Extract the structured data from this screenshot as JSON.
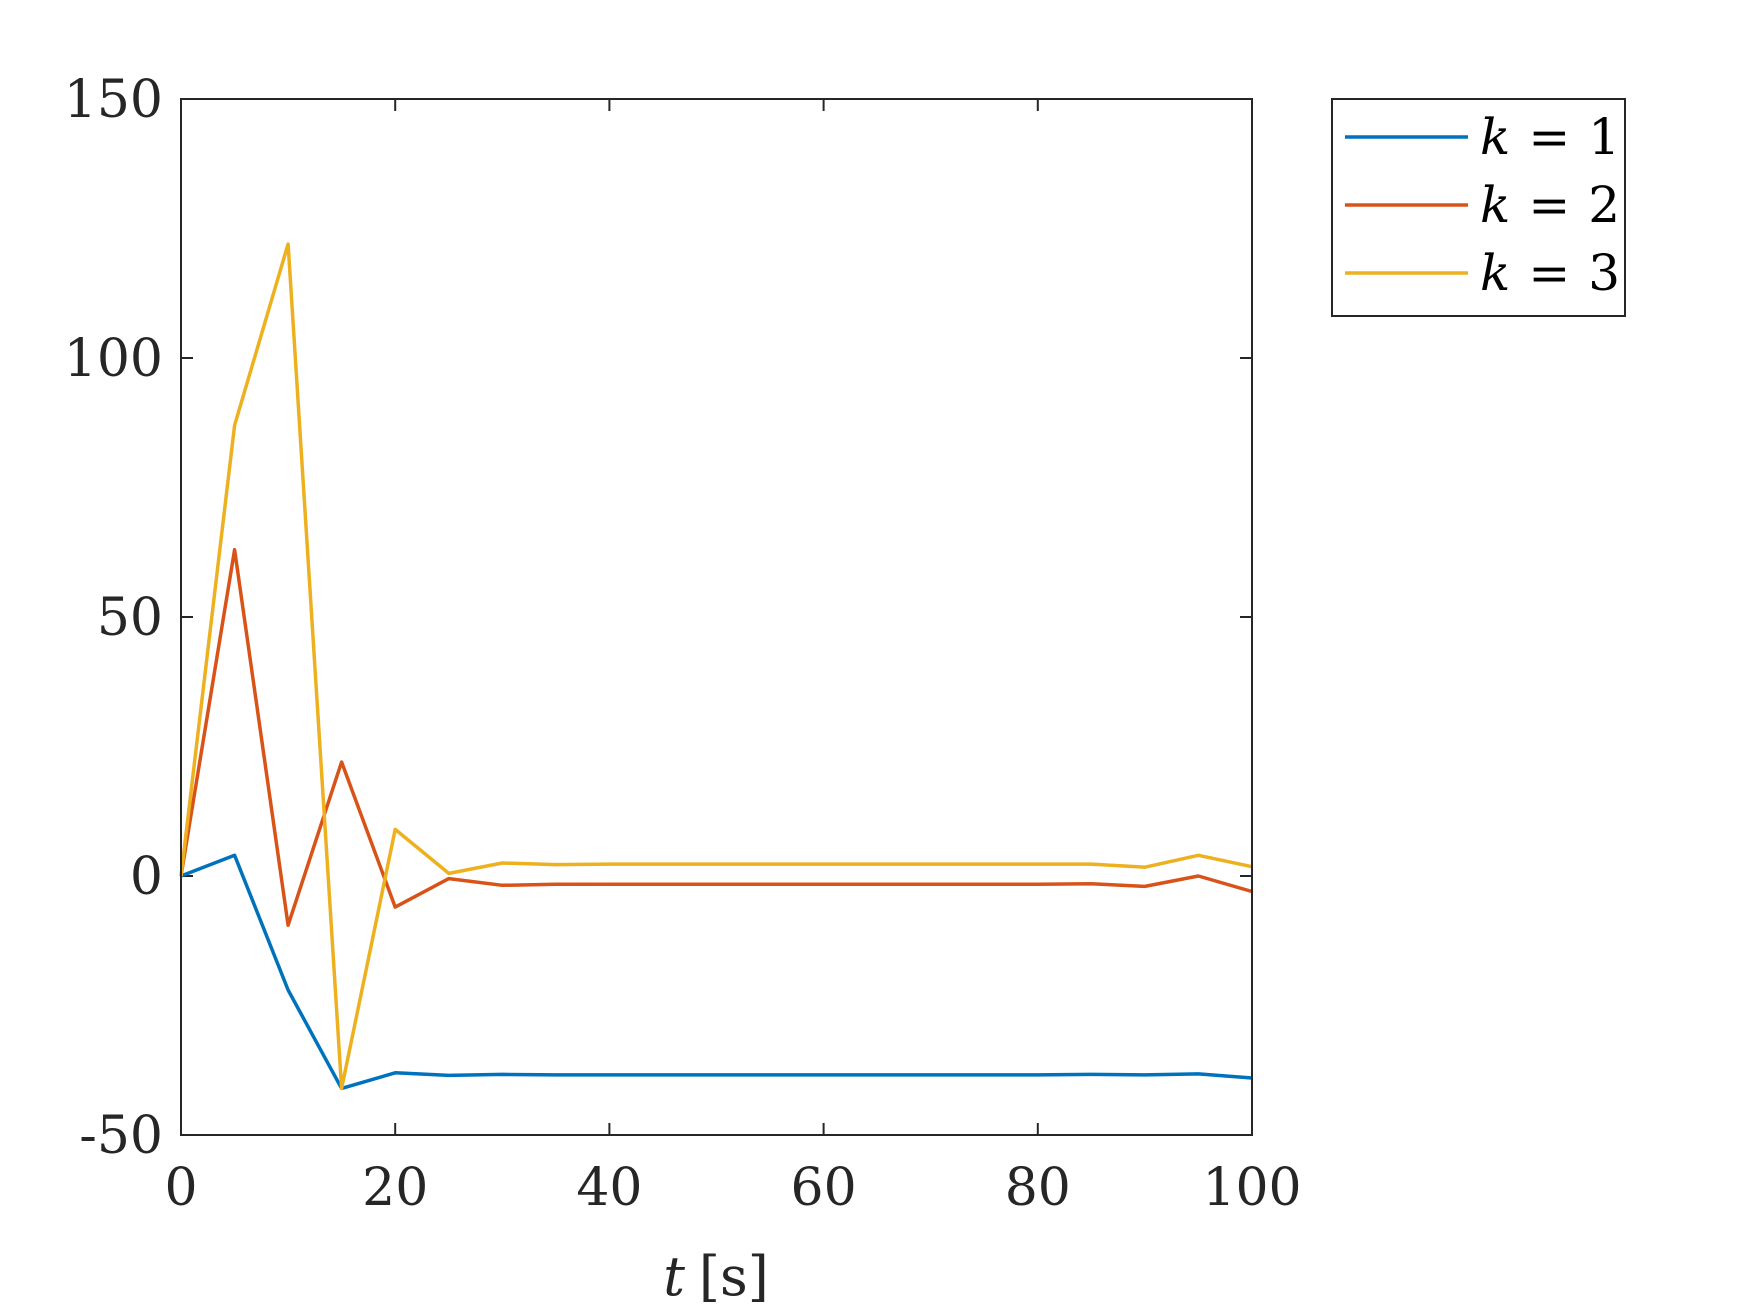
{
  "chart_data": {
    "type": "line",
    "title": "",
    "xlabel_var": "t",
    "xlabel_unit": "[s]",
    "ylabel": "",
    "xlim": [
      0,
      100
    ],
    "ylim": [
      -50,
      150
    ],
    "xticks": [
      0,
      20,
      40,
      60,
      80,
      100
    ],
    "yticks": [
      -50,
      0,
      50,
      100,
      150
    ],
    "xtick_labels": [
      "0",
      "20",
      "40",
      "60",
      "80",
      "100"
    ],
    "ytick_labels": [
      "-50",
      "0",
      "50",
      "100",
      "150"
    ],
    "grid": false,
    "legend_position": "outside-top-right",
    "x": [
      0,
      5,
      10,
      15,
      20,
      25,
      30,
      35,
      40,
      45,
      50,
      55,
      60,
      65,
      70,
      75,
      80,
      85,
      90,
      95,
      100
    ],
    "series": [
      {
        "name": "k = 1",
        "var": "k",
        "val": "1",
        "color": "#0072BD",
        "values": [
          0,
          4,
          -22,
          -41,
          -38,
          -38.5,
          -38.3,
          -38.4,
          -38.4,
          -38.4,
          -38.4,
          -38.4,
          -38.4,
          -38.4,
          -38.4,
          -38.4,
          -38.4,
          -38.3,
          -38.4,
          -38.2,
          -39
        ]
      },
      {
        "name": "k = 2",
        "var": "k",
        "val": "2",
        "color": "#D95319",
        "values": [
          0,
          63,
          -9.5,
          22,
          -6,
          -0.5,
          -1.8,
          -1.6,
          -1.6,
          -1.6,
          -1.6,
          -1.6,
          -1.6,
          -1.6,
          -1.6,
          -1.6,
          -1.6,
          -1.5,
          -2,
          0,
          -3
        ]
      },
      {
        "name": "k = 3",
        "var": "k",
        "val": "3",
        "color": "#EDB120",
        "values": [
          0,
          87,
          122,
          -41,
          9,
          0.5,
          2.5,
          2.2,
          2.3,
          2.3,
          2.3,
          2.3,
          2.3,
          2.3,
          2.3,
          2.3,
          2.3,
          2.3,
          1.7,
          4,
          1.8
        ]
      }
    ]
  }
}
